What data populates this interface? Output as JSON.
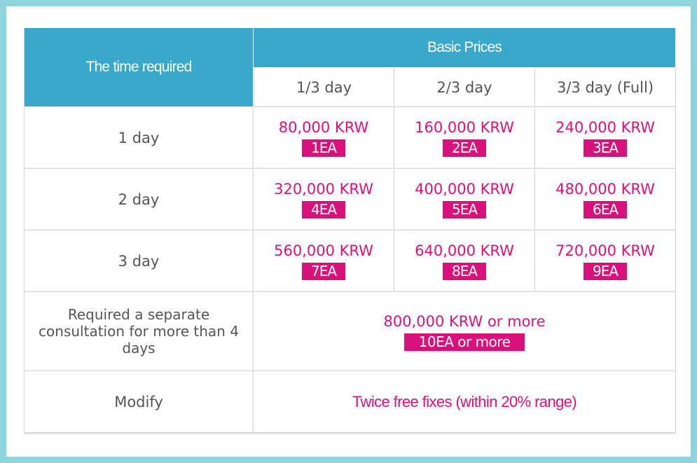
{
  "table": {
    "corner_header": "The time required",
    "group_header": "Basic Prices",
    "columns": [
      "1/3 day",
      "2/3 day",
      "3/3 day (Full)"
    ],
    "rows": [
      {
        "label": "1 day",
        "cells": [
          {
            "price": "80,000 KRW",
            "qty": "1EA"
          },
          {
            "price": "160,000 KRW",
            "qty": "2EA"
          },
          {
            "price": "240,000 KRW",
            "qty": "3EA"
          }
        ]
      },
      {
        "label": "2 day",
        "cells": [
          {
            "price": "320,000 KRW",
            "qty": "4EA"
          },
          {
            "price": "400,000 KRW",
            "qty": "5EA"
          },
          {
            "price": "480,000 KRW",
            "qty": "6EA"
          }
        ]
      },
      {
        "label": "3 day",
        "cells": [
          {
            "price": "560,000 KRW",
            "qty": "7EA"
          },
          {
            "price": "640,000 KRW",
            "qty": "8EA"
          },
          {
            "price": "720,000 KRW",
            "qty": "9EA"
          }
        ]
      }
    ],
    "consultation": {
      "label": "Required a separate consultation for more than 4 days",
      "price": "800,000 KRW or more",
      "qty": "10EA or more"
    },
    "modify": {
      "label": "Modify",
      "note": "Twice free fixes (within 20% range)"
    }
  },
  "colors": {
    "header_bg": "#39a8cb",
    "accent": "#d9117a",
    "frame": "#8fd3de"
  }
}
